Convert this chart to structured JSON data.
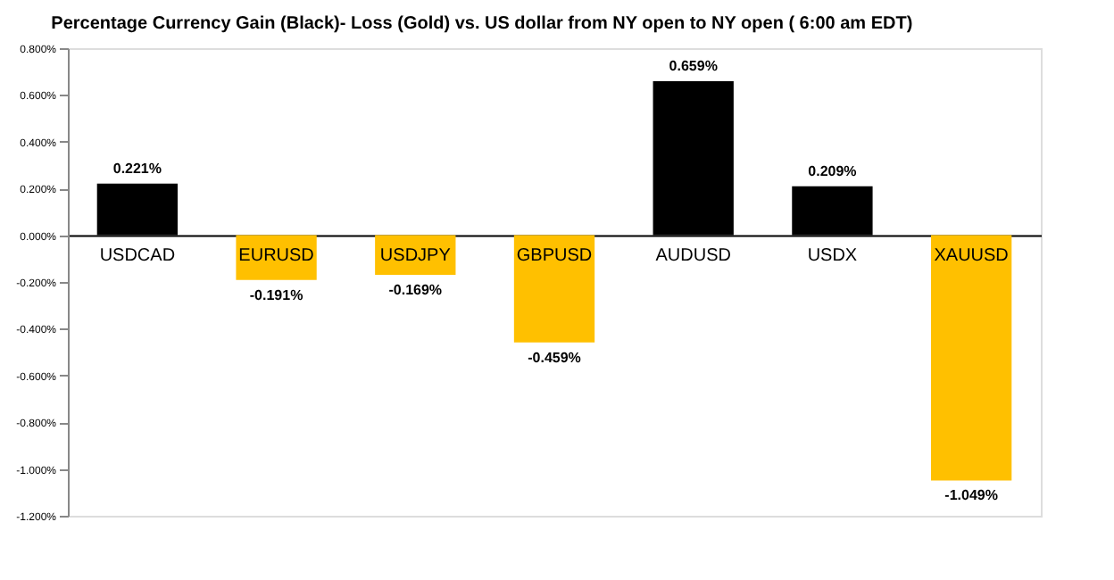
{
  "chart_data": {
    "type": "bar",
    "title": "Percentage Currency  Gain (Black)- Loss (Gold)  vs. US dollar  from NY  open to NY open  ( 6:00 am EDT)",
    "categories": [
      "USDCAD",
      "EURUSD",
      "USDJPY",
      "GBPUSD",
      "AUDUSD",
      "USDX",
      "XAUUSD"
    ],
    "values": [
      0.221,
      -0.191,
      -0.169,
      -0.459,
      0.659,
      0.209,
      -1.049
    ],
    "colors": [
      "#000000",
      "#ffc000",
      "#ffc000",
      "#ffc000",
      "#000000",
      "#000000",
      "#ffc000"
    ],
    "value_labels": [
      "0.221%",
      "-0.191%",
      "-0.169%",
      "-0.459%",
      "0.659%",
      "0.209%",
      "-1.049%"
    ],
    "ylim": [
      -1.2,
      0.8
    ],
    "yticks": [
      {
        "value": 0.8,
        "label": "0.800%"
      },
      {
        "value": 0.6,
        "label": "0.600%"
      },
      {
        "value": 0.4,
        "label": "0.400%"
      },
      {
        "value": 0.2,
        "label": "0.200%"
      },
      {
        "value": 0,
        "label": "0.000%"
      },
      {
        "value": -0.2,
        "label": "-0.200%"
      },
      {
        "value": -0.4,
        "label": "-0.400%"
      },
      {
        "value": -0.6,
        "label": "-0.600%"
      },
      {
        "value": -0.8,
        "label": "-0.800%"
      },
      {
        "value": -1.0,
        "label": "-1.000%"
      },
      {
        "value": -1.2,
        "label": "-1.200%"
      }
    ],
    "grid": false
  }
}
